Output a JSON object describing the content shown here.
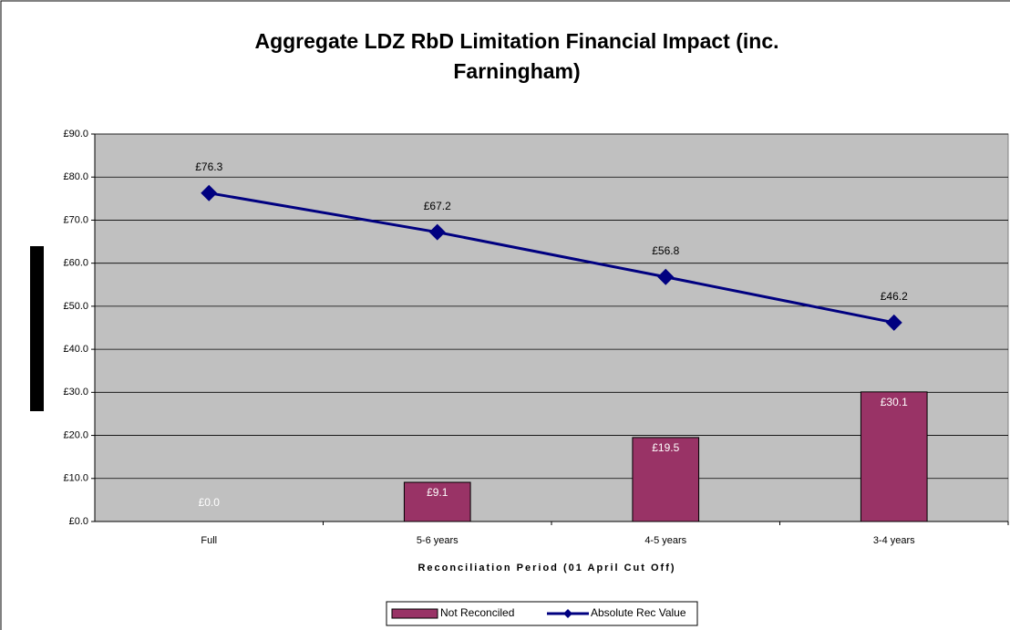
{
  "chart_data": {
    "type": "combo",
    "title": [
      "Aggregate LDZ RbD Limitation Financial Impact (inc.",
      "Farningham)"
    ],
    "x_label": "Reconciliation Period (01 April Cut Off)",
    "categories": [
      "Full",
      "5-6 years",
      "4-5 years",
      "3-4 years"
    ],
    "series": [
      {
        "name": "Not Reconciled",
        "type": "bar",
        "color": "#993366",
        "values": [
          0,
          9.1,
          19.5,
          30.1
        ],
        "value_labels": [
          "£0.0",
          "£9.1",
          "£19.5",
          "£30.1"
        ]
      },
      {
        "name": "Absolute Rec Value",
        "type": "line",
        "color": "#000080",
        "values": [
          76.3,
          67.2,
          56.8,
          46.2
        ],
        "value_labels": [
          "£76.3",
          "£67.2",
          "£56.8",
          "£46.2"
        ]
      }
    ],
    "ylim": [
      0,
      90
    ],
    "yticks": [
      {
        "value": 0,
        "label": "£0.0"
      },
      {
        "value": 10,
        "label": "£10.0"
      },
      {
        "value": 20,
        "label": "£20.0"
      },
      {
        "value": 30,
        "label": "£30.0"
      },
      {
        "value": 40,
        "label": "£40.0"
      },
      {
        "value": 50,
        "label": "£50.0"
      },
      {
        "value": 60,
        "label": "£60.0"
      },
      {
        "value": 70,
        "label": "£70.0"
      },
      {
        "value": 80,
        "label": "£80.0"
      },
      {
        "value": 90,
        "label": "£90.0"
      }
    ],
    "grid": true,
    "legend": "bottom"
  }
}
